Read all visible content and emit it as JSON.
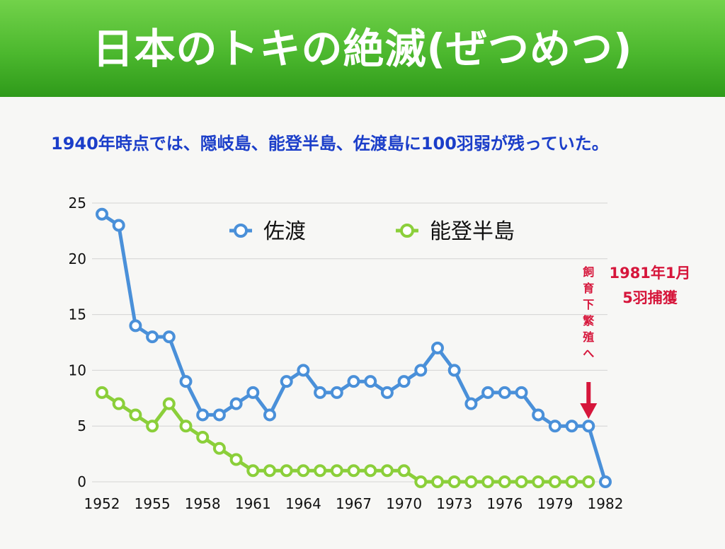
{
  "slide": {
    "title": "日本のトキの絶滅(ぜつめつ)",
    "subtitle": "1940年時点では、隠岐島、能登半島、佐渡島に100羽弱が残っていた。"
  },
  "colors": {
    "title_band": "#4cb82e",
    "subtitle_text": "#1b3ec9",
    "annotation": "#d6163b"
  },
  "chart_data": {
    "type": "line",
    "x": [
      1952,
      1953,
      1954,
      1955,
      1956,
      1957,
      1958,
      1959,
      1960,
      1961,
      1962,
      1963,
      1964,
      1965,
      1966,
      1967,
      1968,
      1969,
      1970,
      1971,
      1972,
      1973,
      1974,
      1975,
      1976,
      1977,
      1978,
      1979,
      1980,
      1981,
      1982
    ],
    "series": [
      {
        "name": "佐渡",
        "color": "#4a90d9",
        "values": [
          24,
          23,
          14,
          13,
          13,
          9,
          6,
          6,
          7,
          8,
          6,
          9,
          10,
          8,
          8,
          9,
          9,
          8,
          9,
          10,
          12,
          10,
          7,
          8,
          8,
          8,
          6,
          5,
          5,
          5,
          0
        ]
      },
      {
        "name": "能登半島",
        "color": "#8bcf3a",
        "values": [
          8,
          7,
          6,
          5,
          7,
          5,
          4,
          3,
          2,
          1,
          1,
          1,
          1,
          1,
          1,
          1,
          1,
          1,
          1,
          0,
          0,
          0,
          0,
          0,
          0,
          0,
          0,
          0,
          0,
          0,
          null
        ]
      }
    ],
    "xlim": [
      1952,
      1982
    ],
    "ylim": [
      0,
      25
    ],
    "x_ticks": [
      "1952",
      "1955",
      "1958",
      "1961",
      "1964",
      "1967",
      "1970",
      "1973",
      "1976",
      "1979",
      "1982"
    ],
    "y_ticks": [
      "0",
      "5",
      "10",
      "15",
      "20",
      "25"
    ],
    "grid": "horizontal",
    "legend": "top-center",
    "annotations": {
      "vertical_label": [
        "飼",
        "育",
        "下",
        "繁",
        "殖",
        "へ"
      ],
      "arrow_at_year": 1981,
      "note_line1": "1981年1月",
      "note_line2": "5羽捕獲"
    }
  }
}
